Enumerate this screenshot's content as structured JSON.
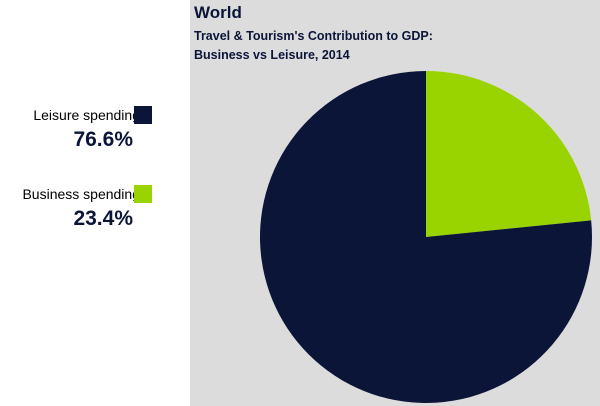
{
  "chart_data": {
    "type": "pie",
    "title": "World",
    "subtitle": "Travel & Tourism's Contribution to GDP:\nBusiness vs Leisure, 2014",
    "slices": [
      {
        "label": "Leisure spending",
        "value": 76.6,
        "display": "76.6%",
        "color": "#0b1538"
      },
      {
        "label": "Business spending",
        "value": 23.4,
        "display": "23.4%",
        "color": "#99d400"
      }
    ],
    "legend_position": "left"
  },
  "colors": {
    "chart_background": "#dcdcdc",
    "title_text": "#0b1538"
  }
}
